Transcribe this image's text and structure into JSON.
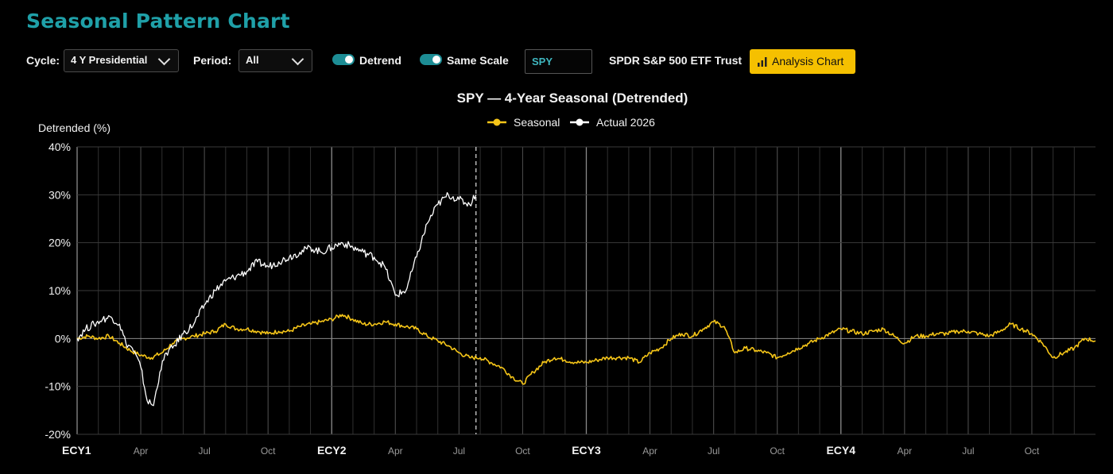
{
  "page_title": "Seasonal Pattern Chart",
  "toolbar": {
    "cycle_label": "Cycle:",
    "cycle_value": "4 Y Presidential",
    "period_label": "Period:",
    "period_value": "All",
    "detrend_label": "Detrend",
    "detrend_on": true,
    "same_scale_label": "Same Scale",
    "same_scale_on": true,
    "ticker_value": "SPY",
    "security_name": "SPDR S&P 500 ETF Trust",
    "analysis_button_label": "Analysis Chart",
    "accent_color": "#1d8d95",
    "button_color": "#f5c000",
    "icons": {
      "dropdown": "chevron-down-icon",
      "analysis": "bar-chart-icon"
    }
  },
  "chart_data": {
    "type": "line",
    "title": "SPY — 4-Year Seasonal (Detrended)",
    "ylabel": "Detrended (%)",
    "ylim": [
      -20,
      40
    ],
    "yticks": [
      -20,
      -10,
      0,
      10,
      20,
      30,
      40
    ],
    "ytick_labels": [
      "-20%",
      "-10%",
      "0%",
      "10%",
      "20%",
      "30%",
      "40%"
    ],
    "xlim": [
      0,
      48
    ],
    "x_unit": "months since start of ECY1",
    "xticks": [
      {
        "x": 0,
        "label": "ECY1",
        "major": true
      },
      {
        "x": 3,
        "label": "Apr",
        "major": false
      },
      {
        "x": 6,
        "label": "Jul",
        "major": false
      },
      {
        "x": 9,
        "label": "Oct",
        "major": false
      },
      {
        "x": 12,
        "label": "ECY2",
        "major": true
      },
      {
        "x": 15,
        "label": "Apr",
        "major": false
      },
      {
        "x": 18,
        "label": "Jul",
        "major": false
      },
      {
        "x": 21,
        "label": "Oct",
        "major": false
      },
      {
        "x": 24,
        "label": "ECY3",
        "major": true
      },
      {
        "x": 27,
        "label": "Apr",
        "major": false
      },
      {
        "x": 30,
        "label": "Jul",
        "major": false
      },
      {
        "x": 33,
        "label": "Oct",
        "major": false
      },
      {
        "x": 36,
        "label": "ECY4",
        "major": true
      },
      {
        "x": 39,
        "label": "Apr",
        "major": false
      },
      {
        "x": 42,
        "label": "Jul",
        "major": false
      },
      {
        "x": 45,
        "label": "Oct",
        "major": false
      }
    ],
    "grid": true,
    "legend_position": "top-center",
    "current_marker_x": 18.8,
    "series": [
      {
        "name": "Seasonal",
        "color": "#f5c518",
        "x": [
          0,
          0.5,
          1,
          1.5,
          2,
          2.5,
          3,
          3.5,
          4,
          4.5,
          5,
          5.5,
          6,
          6.5,
          7,
          7.5,
          8,
          8.5,
          9,
          9.5,
          10,
          10.5,
          11,
          11.5,
          12,
          12.5,
          13,
          13.5,
          14,
          14.5,
          15,
          15.5,
          16,
          16.5,
          17,
          17.5,
          18,
          18.5,
          19,
          19.5,
          20,
          20.5,
          21,
          21.5,
          22,
          22.5,
          23,
          23.5,
          24,
          24.5,
          25,
          25.5,
          26,
          26.5,
          27,
          27.5,
          28,
          28.5,
          29,
          29.5,
          30,
          30.5,
          31,
          31.5,
          32,
          32.5,
          33,
          33.5,
          34,
          34.5,
          35,
          35.5,
          36,
          36.5,
          37,
          37.5,
          38,
          38.5,
          39,
          39.5,
          40,
          40.5,
          41,
          41.5,
          42,
          42.5,
          43,
          43.5,
          44,
          44.5,
          45,
          45.5,
          46,
          46.5,
          47,
          47.5,
          48
        ],
        "y": [
          0,
          0.5,
          0,
          0.5,
          -1,
          -2.5,
          -3.5,
          -4,
          -3,
          -1,
          0,
          0.5,
          1,
          1.5,
          3,
          2,
          2,
          1.5,
          1,
          1.5,
          1.5,
          2.5,
          3,
          3.5,
          4,
          5,
          4,
          3,
          3,
          3.5,
          3,
          2.5,
          2,
          0.5,
          -0.5,
          -1.5,
          -3,
          -4,
          -4,
          -5,
          -6,
          -8,
          -9.5,
          -7,
          -5,
          -4,
          -4.5,
          -5,
          -5,
          -4.5,
          -4,
          -4,
          -4,
          -5,
          -3,
          -2,
          0,
          1,
          0.5,
          2,
          3.5,
          2.5,
          -3,
          -2,
          -2.5,
          -3,
          -4,
          -3,
          -2,
          -1,
          0,
          1,
          2,
          1.5,
          1,
          1.5,
          2,
          0.5,
          -1,
          0.5,
          0.5,
          1,
          1,
          1.5,
          1.5,
          1,
          0.5,
          1.5,
          3,
          2,
          1,
          -1,
          -4,
          -3,
          -2,
          0,
          -0.5
        ]
      },
      {
        "name": "Actual 2026",
        "color": "#ffffff",
        "x": [
          0,
          0.4,
          0.8,
          1.2,
          1.6,
          2,
          2.3,
          2.6,
          3,
          3.3,
          3.6,
          3.9,
          4.2,
          4.5,
          5,
          5.5,
          6,
          6.5,
          7,
          7.5,
          8,
          8.5,
          9,
          9.5,
          10,
          10.5,
          11,
          11.5,
          12,
          12.5,
          13,
          13.5,
          14,
          14.5,
          15,
          15.5,
          16,
          16.5,
          17,
          17.5,
          18,
          18.5,
          18.8
        ],
        "y": [
          0,
          2,
          3,
          4,
          4.5,
          3,
          -1,
          -2,
          -6,
          -13,
          -14,
          -7,
          -3,
          -2,
          1,
          3,
          7,
          10,
          12,
          13,
          14,
          16,
          15,
          16,
          17,
          18,
          19,
          18,
          19,
          20,
          19,
          18,
          17,
          15,
          9,
          10,
          17,
          24,
          28,
          30,
          29,
          28,
          30
        ]
      }
    ]
  }
}
